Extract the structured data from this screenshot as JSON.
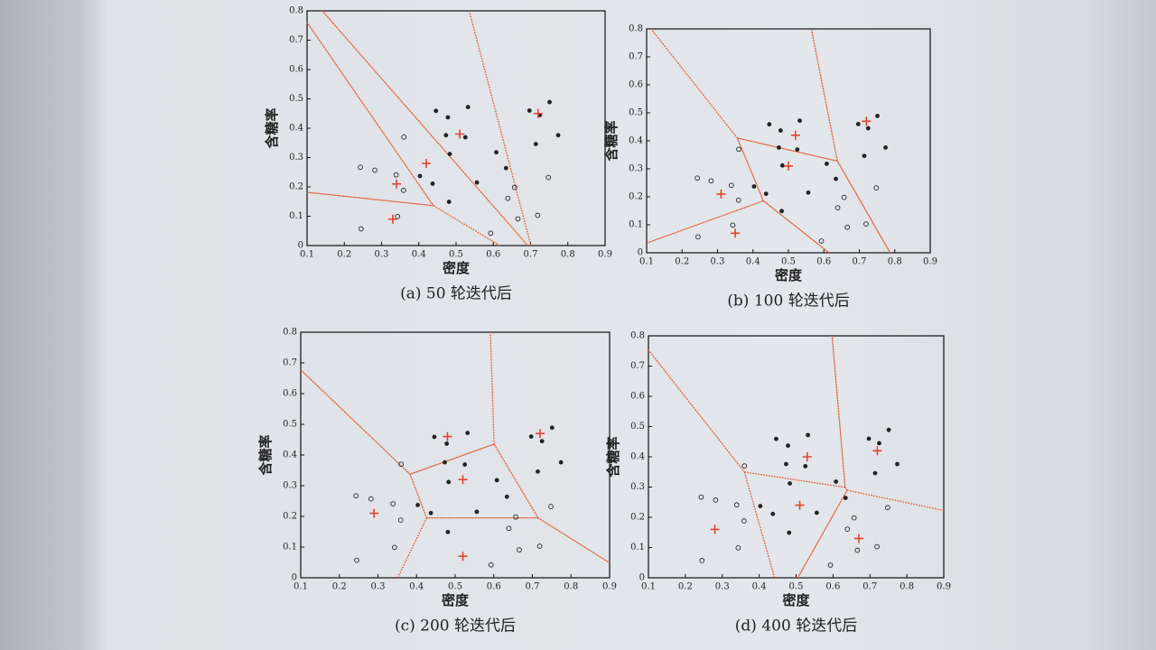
{
  "chart_data": [
    {
      "type": "scatter",
      "caption": "(a) 50 轮迭代后",
      "xlabel": "密度",
      "ylabel": "含糖率",
      "xlim": [
        0.1,
        0.9
      ],
      "ylim": [
        0,
        0.8
      ],
      "xticks": [
        0.1,
        0.2,
        0.3,
        0.4,
        0.5,
        0.6,
        0.7,
        0.8,
        0.9
      ],
      "yticks": [
        0,
        0.1,
        0.2,
        0.3,
        0.4,
        0.5,
        0.6,
        0.7,
        0.8
      ],
      "voronoi": true,
      "series": [
        {
          "marker": "filled",
          "color": "#222222",
          "x": [
            0.697,
            0.774,
            0.634,
            0.608,
            0.556,
            0.403,
            0.481,
            0.437,
            0.714,
            0.483,
            0.478,
            0.525,
            0.751,
            0.532,
            0.473,
            0.725,
            0.446
          ],
          "y": [
            0.46,
            0.376,
            0.264,
            0.318,
            0.215,
            0.237,
            0.149,
            0.211,
            0.346,
            0.312,
            0.437,
            0.369,
            0.489,
            0.472,
            0.376,
            0.445,
            0.459
          ]
        },
        {
          "marker": "hollow",
          "color": "#222222",
          "x": [
            0.666,
            0.243,
            0.245,
            0.343,
            0.639,
            0.657,
            0.36,
            0.593,
            0.719,
            0.359,
            0.339,
            0.282,
            0.748
          ],
          "y": [
            0.091,
            0.267,
            0.057,
            0.099,
            0.161,
            0.198,
            0.37,
            0.042,
            0.103,
            0.188,
            0.241,
            0.257,
            0.232
          ]
        },
        {
          "marker": "plus",
          "color": "#e0452c",
          "x": [
            0.72,
            0.51,
            0.42,
            0.34,
            0.33
          ],
          "y": [
            0.45,
            0.38,
            0.28,
            0.21,
            0.09
          ]
        }
      ]
    },
    {
      "type": "scatter",
      "caption": "(b) 100 轮迭代后",
      "xlabel": "密度",
      "ylabel": "含糖率",
      "xlim": [
        0.1,
        0.9
      ],
      "ylim": [
        0,
        0.8
      ],
      "xticks": [
        0.1,
        0.2,
        0.3,
        0.4,
        0.5,
        0.6,
        0.7,
        0.8,
        0.9
      ],
      "yticks": [
        0,
        0.1,
        0.2,
        0.3,
        0.4,
        0.5,
        0.6,
        0.7,
        0.8
      ],
      "voronoi": true,
      "series": [
        {
          "marker": "filled",
          "color": "#222222",
          "x": [
            0.697,
            0.774,
            0.634,
            0.608,
            0.556,
            0.403,
            0.481,
            0.437,
            0.714,
            0.483,
            0.478,
            0.525,
            0.751,
            0.532,
            0.473,
            0.725,
            0.446
          ],
          "y": [
            0.46,
            0.376,
            0.264,
            0.318,
            0.215,
            0.237,
            0.149,
            0.211,
            0.346,
            0.312,
            0.437,
            0.369,
            0.489,
            0.472,
            0.376,
            0.445,
            0.459
          ]
        },
        {
          "marker": "hollow",
          "color": "#222222",
          "x": [
            0.666,
            0.243,
            0.245,
            0.343,
            0.639,
            0.657,
            0.36,
            0.593,
            0.719,
            0.359,
            0.339,
            0.282,
            0.748
          ],
          "y": [
            0.091,
            0.267,
            0.057,
            0.099,
            0.161,
            0.198,
            0.37,
            0.042,
            0.103,
            0.188,
            0.241,
            0.257,
            0.232
          ]
        },
        {
          "marker": "plus",
          "color": "#e0452c",
          "x": [
            0.72,
            0.52,
            0.5,
            0.31,
            0.35
          ],
          "y": [
            0.47,
            0.42,
            0.31,
            0.21,
            0.07
          ]
        }
      ]
    },
    {
      "type": "scatter",
      "caption": "(c) 200 轮迭代后",
      "xlabel": "密度",
      "ylabel": "含糖率",
      "xlim": [
        0.1,
        0.9
      ],
      "ylim": [
        0,
        0.8
      ],
      "xticks": [
        0.1,
        0.2,
        0.3,
        0.4,
        0.5,
        0.6,
        0.7,
        0.8,
        0.9
      ],
      "yticks": [
        0,
        0.1,
        0.2,
        0.3,
        0.4,
        0.5,
        0.6,
        0.7,
        0.8
      ],
      "voronoi": true,
      "series": [
        {
          "marker": "filled",
          "color": "#222222",
          "x": [
            0.697,
            0.774,
            0.634,
            0.608,
            0.556,
            0.403,
            0.481,
            0.437,
            0.714,
            0.483,
            0.478,
            0.525,
            0.751,
            0.532,
            0.473,
            0.725,
            0.446
          ],
          "y": [
            0.46,
            0.376,
            0.264,
            0.318,
            0.215,
            0.237,
            0.149,
            0.211,
            0.346,
            0.312,
            0.437,
            0.369,
            0.489,
            0.472,
            0.376,
            0.445,
            0.459
          ]
        },
        {
          "marker": "hollow",
          "color": "#222222",
          "x": [
            0.666,
            0.243,
            0.245,
            0.343,
            0.639,
            0.657,
            0.36,
            0.593,
            0.719,
            0.359,
            0.339,
            0.282,
            0.748
          ],
          "y": [
            0.091,
            0.267,
            0.057,
            0.099,
            0.161,
            0.198,
            0.37,
            0.042,
            0.103,
            0.188,
            0.241,
            0.257,
            0.232
          ]
        },
        {
          "marker": "plus",
          "color": "#e0452c",
          "x": [
            0.72,
            0.48,
            0.52,
            0.29,
            0.52
          ],
          "y": [
            0.47,
            0.46,
            0.32,
            0.21,
            0.07
          ]
        }
      ]
    },
    {
      "type": "scatter",
      "caption": "(d) 400 轮迭代后",
      "xlabel": "密度",
      "ylabel": "含糖率",
      "xlim": [
        0.1,
        0.9
      ],
      "ylim": [
        0,
        0.8
      ],
      "xticks": [
        0.1,
        0.2,
        0.3,
        0.4,
        0.5,
        0.6,
        0.7,
        0.8,
        0.9
      ],
      "yticks": [
        0,
        0.1,
        0.2,
        0.3,
        0.4,
        0.5,
        0.6,
        0.7,
        0.8
      ],
      "voronoi": true,
      "series": [
        {
          "marker": "filled",
          "color": "#222222",
          "x": [
            0.697,
            0.774,
            0.634,
            0.608,
            0.556,
            0.403,
            0.481,
            0.437,
            0.714,
            0.483,
            0.478,
            0.525,
            0.751,
            0.532,
            0.473,
            0.725,
            0.446
          ],
          "y": [
            0.46,
            0.376,
            0.264,
            0.318,
            0.215,
            0.237,
            0.149,
            0.211,
            0.346,
            0.312,
            0.437,
            0.369,
            0.489,
            0.472,
            0.376,
            0.445,
            0.459
          ]
        },
        {
          "marker": "hollow",
          "color": "#222222",
          "x": [
            0.666,
            0.243,
            0.245,
            0.343,
            0.639,
            0.657,
            0.36,
            0.593,
            0.719,
            0.359,
            0.339,
            0.282,
            0.748
          ],
          "y": [
            0.091,
            0.267,
            0.057,
            0.099,
            0.161,
            0.198,
            0.37,
            0.042,
            0.103,
            0.188,
            0.241,
            0.257,
            0.232
          ]
        },
        {
          "marker": "plus",
          "color": "#e0452c",
          "x": [
            0.72,
            0.53,
            0.51,
            0.28,
            0.67
          ],
          "y": [
            0.42,
            0.4,
            0.24,
            0.16,
            0.13
          ]
        }
      ]
    }
  ]
}
